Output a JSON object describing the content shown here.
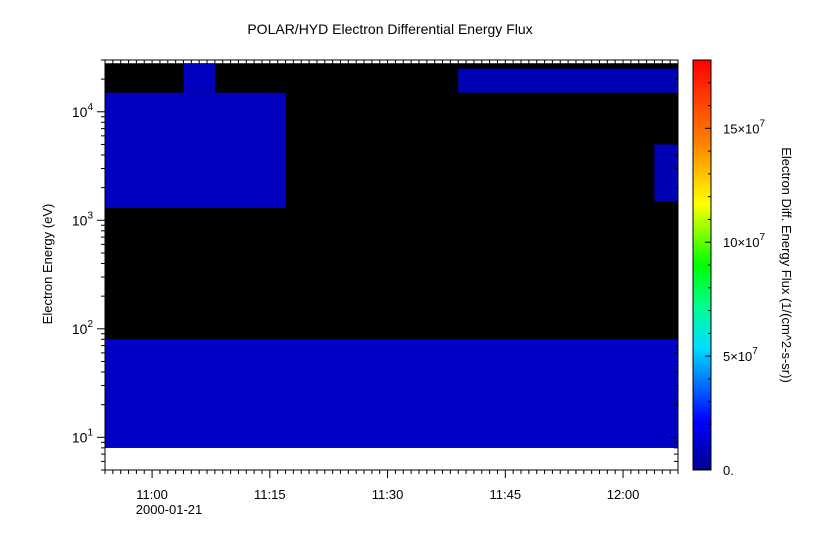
{
  "chart_data": {
    "type": "heatmap",
    "title": "POLAR/HYD  Electron Differential Energy Flux",
    "xlabel": "",
    "ylabel": "Electron Energy (eV)",
    "colorbar_label": "Electron Diff. Energy Flux (1/(cm^2-s-sr))",
    "date_label": "2000-01-21",
    "x_scale": "time",
    "y_scale": "log",
    "xlim": [
      "10:54",
      "12:07"
    ],
    "ylim": [
      5,
      30000
    ],
    "x_ticks": [
      {
        "time": "11:00",
        "label": "11:00"
      },
      {
        "time": "11:15",
        "label": "11:15"
      },
      {
        "time": "11:30",
        "label": "11:30"
      },
      {
        "time": "11:45",
        "label": "11:45"
      },
      {
        "time": "12:00",
        "label": "12:00"
      }
    ],
    "y_ticks": [
      {
        "value": 10,
        "base": "10",
        "exp": "1"
      },
      {
        "value": 100,
        "base": "10",
        "exp": "2"
      },
      {
        "value": 1000,
        "base": "10",
        "exp": "3"
      },
      {
        "value": 10000,
        "base": "10",
        "exp": "4"
      }
    ],
    "colorbar": {
      "range": [
        0,
        180000000
      ],
      "ticks": [
        {
          "value": 0,
          "label": "0.",
          "base": "",
          "exp": ""
        },
        {
          "value": 50000000,
          "label": "",
          "base": "5×10",
          "exp": "7"
        },
        {
          "value": 100000000,
          "label": "",
          "base": "10×10",
          "exp": "7"
        },
        {
          "value": 150000000,
          "label": "",
          "base": "15×10",
          "exp": "7"
        }
      ]
    },
    "data_energy_range_eV": [
      8,
      28000
    ],
    "fill_value_color": "#000000",
    "regions": [
      {
        "name": "low-energy-band",
        "t_start": "10:54",
        "t_end": "12:07",
        "e_min": 8,
        "e_max": 80,
        "level": 0.06
      },
      {
        "name": "high-energy-blob",
        "t_start": "10:54",
        "t_end": "11:17",
        "e_min": 1300,
        "e_max": 15000,
        "level": 0.05
      },
      {
        "name": "spike",
        "t_start": "11:04",
        "t_end": "11:08",
        "e_min": 15000,
        "e_max": 28000,
        "level": 0.05
      },
      {
        "name": "high-energy-patch-late",
        "t_start": "11:39",
        "t_end": "12:07",
        "e_min": 15000,
        "e_max": 25000,
        "level": 0.04
      },
      {
        "name": "right-edge-patch",
        "t_start": "12:04",
        "t_end": "12:07",
        "e_min": 1500,
        "e_max": 5000,
        "level": 0.04
      }
    ],
    "grid": false,
    "colormap": "rainbow"
  }
}
